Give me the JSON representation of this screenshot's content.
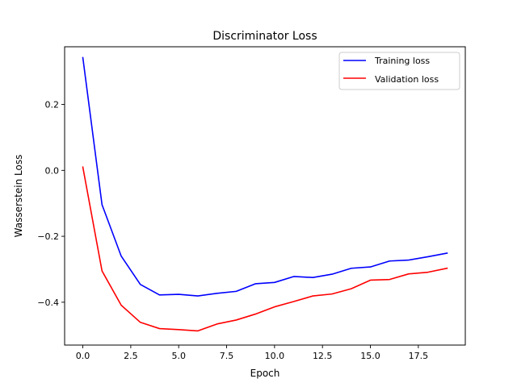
{
  "chart_data": {
    "type": "line",
    "title": "Discriminator Loss",
    "xlabel": "Epoch",
    "ylabel": "Wasserstein Loss",
    "xlim": [
      -0.95,
      19.95
    ],
    "ylim": [
      -0.53,
      0.375
    ],
    "xticks": [
      0,
      2.5,
      5,
      7.5,
      10,
      12.5,
      15,
      17.5
    ],
    "xtick_labels": [
      "0.0",
      "2.5",
      "5.0",
      "7.5",
      "10.0",
      "12.5",
      "15.0",
      "17.5"
    ],
    "yticks": [
      -0.4,
      -0.2,
      0.0,
      0.2
    ],
    "ytick_labels": [
      "−0.4",
      "−0.2",
      "0.0",
      "0.2"
    ],
    "grid": false,
    "legend_position": "top-right",
    "x": [
      0,
      1,
      2,
      3,
      4,
      5,
      6,
      7,
      8,
      9,
      10,
      11,
      12,
      13,
      14,
      15,
      16,
      17,
      18,
      19
    ],
    "series": [
      {
        "name": "Training loss",
        "color": "#0000ff",
        "values": [
          0.342,
          -0.104,
          -0.26,
          -0.346,
          -0.378,
          -0.376,
          -0.381,
          -0.373,
          -0.367,
          -0.344,
          -0.34,
          -0.322,
          -0.325,
          -0.315,
          -0.297,
          -0.293,
          -0.275,
          -0.272,
          -0.262,
          -0.251
        ]
      },
      {
        "name": "Validation loss",
        "color": "#ff0000",
        "values": [
          0.01,
          -0.305,
          -0.409,
          -0.461,
          -0.48,
          -0.483,
          -0.487,
          -0.466,
          -0.454,
          -0.436,
          -0.414,
          -0.398,
          -0.381,
          -0.375,
          -0.359,
          -0.333,
          -0.331,
          -0.314,
          -0.309,
          -0.297
        ]
      }
    ]
  }
}
